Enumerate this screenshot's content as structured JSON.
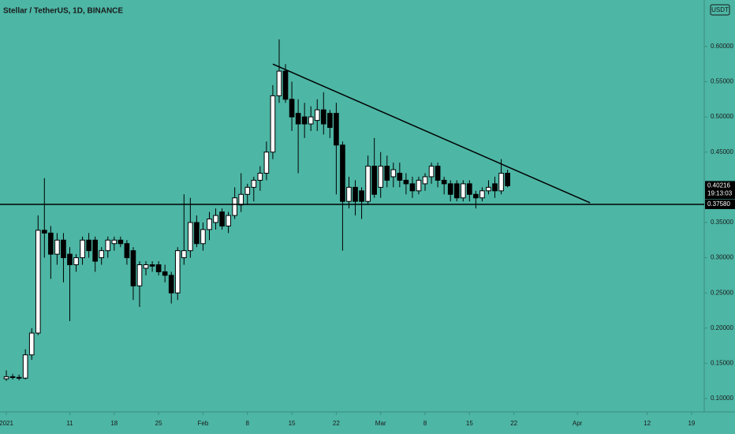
{
  "chart_data": {
    "type": "candlestick",
    "title": "Stellar / TetherUS, 1D, BINANCE",
    "currency": "USDT",
    "x": [
      "2021-01-01",
      "2021-01-02",
      "2021-01-03",
      "2021-01-04",
      "2021-01-05",
      "2021-01-06",
      "2021-01-07",
      "2021-01-08",
      "2021-01-09",
      "2021-01-10",
      "2021-01-11",
      "2021-01-12",
      "2021-01-13",
      "2021-01-14",
      "2021-01-15",
      "2021-01-16",
      "2021-01-17",
      "2021-01-18",
      "2021-01-19",
      "2021-01-20",
      "2021-01-21",
      "2021-01-22",
      "2021-01-23",
      "2021-01-24",
      "2021-01-25",
      "2021-01-26",
      "2021-01-27",
      "2021-01-28",
      "2021-01-29",
      "2021-01-30",
      "2021-01-31",
      "2021-02-01",
      "2021-02-02",
      "2021-02-03",
      "2021-02-04",
      "2021-02-05",
      "2021-02-06",
      "2021-02-07",
      "2021-02-08",
      "2021-02-09",
      "2021-02-10",
      "2021-02-11",
      "2021-02-12",
      "2021-02-13",
      "2021-02-14",
      "2021-02-15",
      "2021-02-16",
      "2021-02-17",
      "2021-02-18",
      "2021-02-19",
      "2021-02-20",
      "2021-02-21",
      "2021-02-22",
      "2021-02-23",
      "2021-02-24",
      "2021-02-25",
      "2021-02-26",
      "2021-02-27",
      "2021-02-28",
      "2021-03-01",
      "2021-03-02",
      "2021-03-03",
      "2021-03-04",
      "2021-03-05",
      "2021-03-06",
      "2021-03-07",
      "2021-03-08",
      "2021-03-09",
      "2021-03-10",
      "2021-03-11",
      "2021-03-12",
      "2021-03-13",
      "2021-03-14",
      "2021-03-15",
      "2021-03-16",
      "2021-03-17",
      "2021-03-18",
      "2021-03-19",
      "2021-03-20",
      "2021-03-21"
    ],
    "open": [
      0.128,
      0.131,
      0.13,
      0.129,
      0.162,
      0.193,
      0.339,
      0.335,
      0.305,
      0.325,
      0.305,
      0.29,
      0.3,
      0.325,
      0.325,
      0.3,
      0.31,
      0.32,
      0.325,
      0.32,
      0.31,
      0.26,
      0.285,
      0.29,
      0.29,
      0.28,
      0.275,
      0.25,
      0.3,
      0.31,
      0.35,
      0.32,
      0.34,
      0.35,
      0.365,
      0.345,
      0.36,
      0.375,
      0.39,
      0.4,
      0.41,
      0.42,
      0.45,
      0.53,
      0.565,
      0.525,
      0.505,
      0.5,
      0.49,
      0.495,
      0.51,
      0.505,
      0.505,
      0.46,
      0.38,
      0.4,
      0.395,
      0.38,
      0.43,
      0.4,
      0.43,
      0.415,
      0.42,
      0.41,
      0.405,
      0.395,
      0.405,
      0.415,
      0.43,
      0.41,
      0.405,
      0.405,
      0.385,
      0.405,
      0.39,
      0.385,
      0.395,
      0.405,
      0.395,
      0.42
    ],
    "high": [
      0.14,
      0.135,
      0.134,
      0.17,
      0.2,
      0.36,
      0.413,
      0.345,
      0.335,
      0.335,
      0.315,
      0.305,
      0.33,
      0.335,
      0.33,
      0.315,
      0.33,
      0.33,
      0.33,
      0.325,
      0.315,
      0.295,
      0.295,
      0.295,
      0.295,
      0.29,
      0.28,
      0.315,
      0.39,
      0.385,
      0.36,
      0.35,
      0.365,
      0.37,
      0.37,
      0.365,
      0.4,
      0.42,
      0.405,
      0.415,
      0.43,
      0.465,
      0.545,
      0.61,
      0.575,
      0.55,
      0.525,
      0.52,
      0.515,
      0.525,
      0.535,
      0.51,
      0.52,
      0.465,
      0.415,
      0.41,
      0.4,
      0.445,
      0.47,
      0.45,
      0.445,
      0.435,
      0.435,
      0.42,
      0.415,
      0.415,
      0.42,
      0.435,
      0.435,
      0.415,
      0.41,
      0.41,
      0.41,
      0.41,
      0.395,
      0.4,
      0.41,
      0.415,
      0.44,
      0.425
    ],
    "low": [
      0.125,
      0.127,
      0.126,
      0.127,
      0.155,
      0.19,
      0.3,
      0.27,
      0.29,
      0.265,
      0.21,
      0.28,
      0.29,
      0.3,
      0.28,
      0.29,
      0.3,
      0.31,
      0.315,
      0.29,
      0.24,
      0.23,
      0.275,
      0.28,
      0.275,
      0.265,
      0.235,
      0.24,
      0.29,
      0.3,
      0.315,
      0.31,
      0.325,
      0.34,
      0.34,
      0.335,
      0.355,
      0.365,
      0.375,
      0.38,
      0.395,
      0.41,
      0.44,
      0.52,
      0.52,
      0.48,
      0.42,
      0.47,
      0.48,
      0.48,
      0.475,
      0.47,
      0.39,
      0.31,
      0.37,
      0.36,
      0.355,
      0.375,
      0.385,
      0.385,
      0.4,
      0.4,
      0.4,
      0.39,
      0.385,
      0.39,
      0.395,
      0.405,
      0.4,
      0.39,
      0.38,
      0.38,
      0.38,
      0.38,
      0.37,
      0.38,
      0.39,
      0.385,
      0.39,
      0.4
    ],
    "close": [
      0.131,
      0.13,
      0.129,
      0.162,
      0.193,
      0.339,
      0.335,
      0.305,
      0.325,
      0.3,
      0.29,
      0.3,
      0.325,
      0.31,
      0.295,
      0.31,
      0.325,
      0.325,
      0.32,
      0.3,
      0.26,
      0.29,
      0.29,
      0.288,
      0.28,
      0.275,
      0.25,
      0.31,
      0.31,
      0.35,
      0.32,
      0.34,
      0.355,
      0.36,
      0.345,
      0.36,
      0.385,
      0.39,
      0.4,
      0.41,
      0.42,
      0.45,
      0.53,
      0.565,
      0.525,
      0.5,
      0.49,
      0.49,
      0.5,
      0.51,
      0.49,
      0.485,
      0.46,
      0.38,
      0.4,
      0.38,
      0.38,
      0.43,
      0.39,
      0.43,
      0.41,
      0.425,
      0.41,
      0.405,
      0.395,
      0.41,
      0.415,
      0.43,
      0.41,
      0.405,
      0.39,
      0.385,
      0.405,
      0.39,
      0.385,
      0.395,
      0.4,
      0.395,
      0.42,
      0.40216
    ],
    "up_color": "#ffffff",
    "down_color": "#000000",
    "xlim": [
      "2020-12-31",
      "2021-04-21"
    ],
    "xticks": [
      {
        "value": "2021-01-01",
        "label": "2021"
      },
      {
        "value": "2021-01-11",
        "label": "11"
      },
      {
        "value": "2021-01-18",
        "label": "18"
      },
      {
        "value": "2021-01-25",
        "label": "25"
      },
      {
        "value": "2021-02-01",
        "label": "Feb"
      },
      {
        "value": "2021-02-08",
        "label": "8"
      },
      {
        "value": "2021-02-15",
        "label": "15"
      },
      {
        "value": "2021-02-22",
        "label": "22"
      },
      {
        "value": "2021-03-01",
        "label": "Mar"
      },
      {
        "value": "2021-03-08",
        "label": "8"
      },
      {
        "value": "2021-03-15",
        "label": "15"
      },
      {
        "value": "2021-03-22",
        "label": "22"
      },
      {
        "value": "2021-04-01",
        "label": "Apr"
      },
      {
        "value": "2021-04-12",
        "label": "12"
      },
      {
        "value": "2021-04-19",
        "label": "19"
      }
    ],
    "ylim": [
      0.081,
      0.666
    ],
    "yticks": [
      {
        "value": 0.1,
        "label": "0.10000"
      },
      {
        "value": 0.15,
        "label": "0.15000"
      },
      {
        "value": 0.2,
        "label": "0.20000"
      },
      {
        "value": 0.25,
        "label": "0.25000"
      },
      {
        "value": 0.3,
        "label": "0.30000"
      },
      {
        "value": 0.35,
        "label": "0.35000"
      },
      {
        "value": 0.4,
        "label": "0.40000"
      },
      {
        "value": 0.45,
        "label": "0.45000"
      },
      {
        "value": 0.5,
        "label": "0.50000"
      },
      {
        "value": 0.55,
        "label": "0.55000"
      },
      {
        "value": 0.6,
        "label": "0.60000"
      }
    ],
    "hline": {
      "value": 0.3758,
      "label": "0.37580"
    },
    "trendline": {
      "x": [
        "2021-02-12",
        "2021-04-03"
      ],
      "y": [
        0.575,
        0.378
      ]
    },
    "last_price": {
      "value": 0.40216,
      "label": "0.40216",
      "countdown": "19:13:03"
    }
  }
}
